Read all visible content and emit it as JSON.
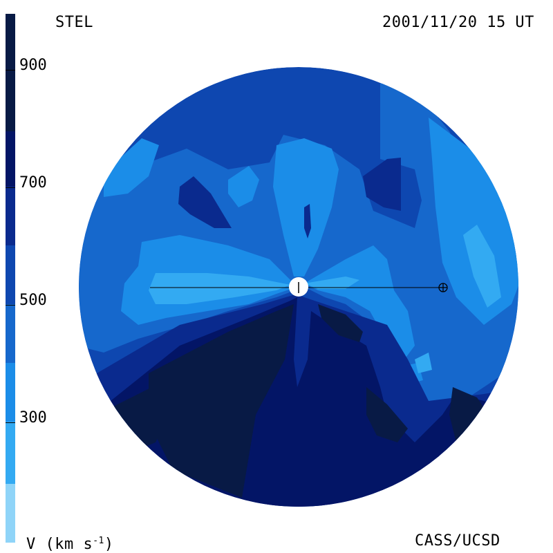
{
  "header": {
    "left": "STEL",
    "right": "2001/11/20 15 UT"
  },
  "footer": {
    "left_label": "V (km s",
    "left_exp": "-1",
    "left_close": ")",
    "right": "CASS/UCSD"
  },
  "colorbar": {
    "tick_labels": [
      "900",
      "700",
      "500",
      "300"
    ],
    "colors": [
      "#081a45",
      "#031566",
      "#0a2a8e",
      "#0e47b0",
      "#1668cc",
      "#1b8de8",
      "#33aaf2",
      "#8fd4f8"
    ]
  },
  "map": {
    "bands": [
      {
        "name": "band-300",
        "color": "#33aaf2"
      },
      {
        "name": "band-400",
        "color": "#1b8de8"
      },
      {
        "name": "band-500",
        "color": "#1668cc"
      },
      {
        "name": "band-600",
        "color": "#0e47b0"
      },
      {
        "name": "band-700",
        "color": "#0a2a8e"
      },
      {
        "name": "band-800",
        "color": "#031566"
      },
      {
        "name": "band-900",
        "color": "#081a45"
      }
    ]
  }
}
